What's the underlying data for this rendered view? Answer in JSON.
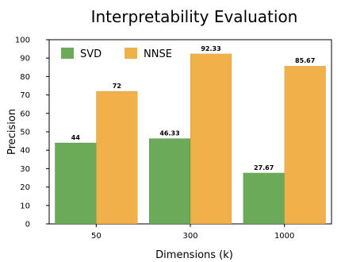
{
  "chart_data": {
    "type": "bar",
    "title": "Interpretability Evaluation",
    "xlabel": "Dimensions (k)",
    "ylabel": "Precision",
    "categories": [
      "50",
      "300",
      "1000"
    ],
    "series": [
      {
        "name": "SVD",
        "values": [
          44,
          46.33,
          27.67
        ],
        "labels": [
          "44",
          "46.33",
          "27.67"
        ],
        "color": "#6aaa58"
      },
      {
        "name": "NNSE",
        "values": [
          72,
          92.33,
          85.67
        ],
        "labels": [
          "72",
          "92.33",
          "85.67"
        ],
        "color": "#f0b04a"
      }
    ],
    "ylim": [
      0,
      100
    ],
    "yticks": [
      "0",
      "10",
      "20",
      "30",
      "40",
      "50",
      "60",
      "70",
      "80",
      "90",
      "100"
    ],
    "grid": false,
    "legend": "top-left"
  }
}
